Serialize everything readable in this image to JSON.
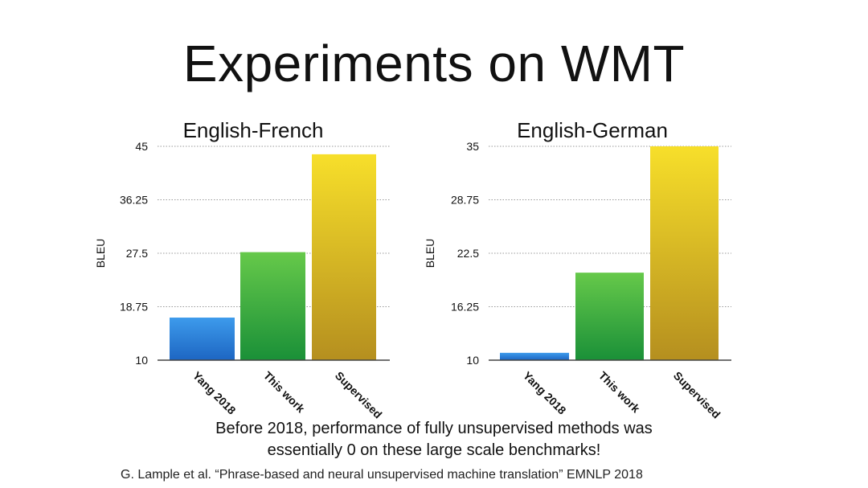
{
  "title": "Experiments on WMT",
  "caption_line1": "Before 2018, performance of fully unsupervised methods was",
  "caption_line2": "essentially 0 on these large scale benchmarks!",
  "citation": "G. Lample et al. “Phrase-based and neural unsupervised machine translation” EMNLP 2018",
  "colors": {
    "yang": [
      "#3d9bec",
      "#1d66c2"
    ],
    "this_work": [
      "#66c94a",
      "#1a9038"
    ],
    "supervised": [
      "#f7df2a",
      "#b58f1f"
    ]
  },
  "chart_data": [
    {
      "type": "bar",
      "title": "English-French",
      "ylabel": "BLEU",
      "categories": [
        "Yang 2018",
        "This work",
        "Supervised"
      ],
      "values": [
        16.97,
        27.68,
        43.7
      ],
      "ylim": [
        10,
        45
      ],
      "yticks": [
        "10",
        "18.75",
        "27.5",
        "36.25",
        "45"
      ],
      "ytick_values": [
        10,
        18.75,
        27.5,
        36.25,
        45
      ],
      "grid": true
    },
    {
      "type": "bar",
      "title": "English-German",
      "ylabel": "BLEU",
      "categories": [
        "Yang 2018",
        "This work",
        "Supervised"
      ],
      "values": [
        10.86,
        20.23,
        35.0
      ],
      "ylim": [
        10,
        35
      ],
      "yticks": [
        "10",
        "16.25",
        "22.5",
        "28.75",
        "35"
      ],
      "ytick_values": [
        10,
        16.25,
        22.5,
        28.75,
        35
      ],
      "grid": true
    }
  ]
}
